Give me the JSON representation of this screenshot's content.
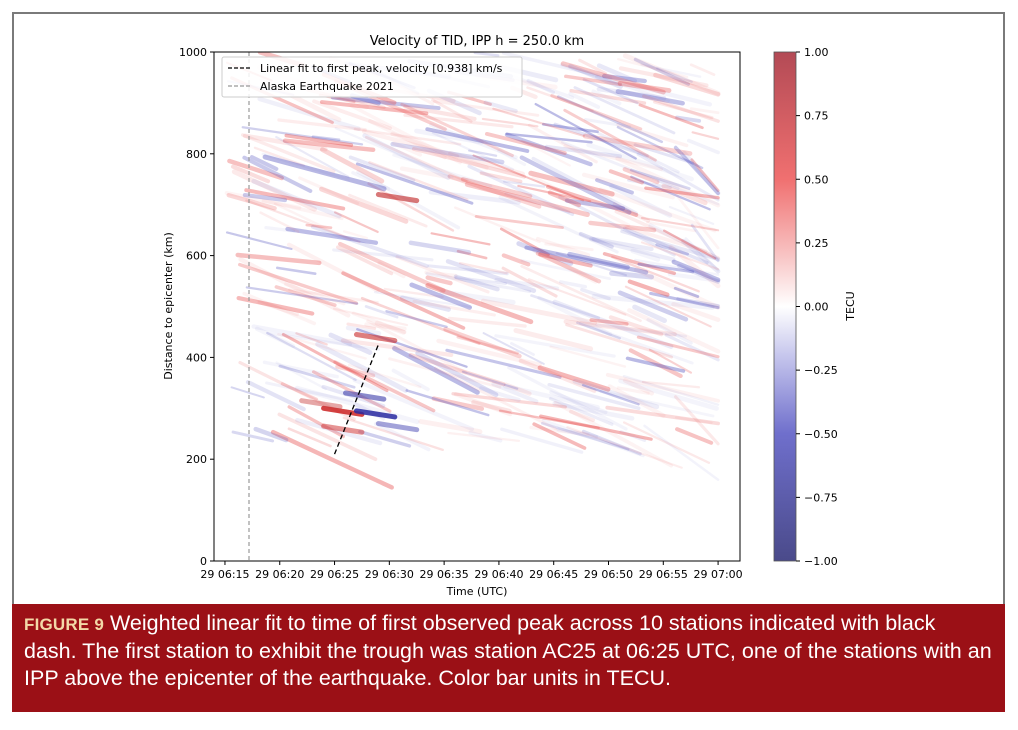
{
  "chart_data": {
    "type": "heatmap",
    "title": "Velocity of TID, IPP h = 250.0 km",
    "xlabel": "Time (UTC)",
    "ylabel": "Distance to epicenter (km)",
    "x_tick_labels": [
      "29 06:15",
      "29 06:20",
      "29 06:25",
      "29 06:30",
      "29 06:35",
      "29 06:40",
      "29 06:45",
      "29 06:50",
      "29 06:55",
      "29 07:00"
    ],
    "y_ticks": [
      0,
      200,
      400,
      600,
      800,
      1000
    ],
    "ylim": [
      0,
      1000
    ],
    "xlim": [
      "06:14",
      "07:02"
    ],
    "colorbar": {
      "label": "TECU",
      "ticks": [
        "1.00",
        "0.75",
        "0.50",
        "0.25",
        "0.00",
        "−0.25",
        "−0.50",
        "−0.75",
        "−1.00"
      ],
      "range": [
        -1,
        1
      ],
      "colormap": "seismic-like (blue negative, red positive)"
    },
    "legend": {
      "placement": "top-left",
      "entries": [
        {
          "label": "Linear fit to first peak, velocity [0.938] km/s",
          "style": "black dashed",
          "color": "#000000"
        },
        {
          "label": "Alaska Earthquake 2021",
          "style": "gray dashed",
          "color": "#999999"
        }
      ]
    },
    "earthquake_time": "06:15",
    "fit_line": {
      "x": [
        "06:25",
        "06:29"
      ],
      "y": [
        210,
        425
      ]
    },
    "data_range_y": [
      250,
      1000
    ],
    "data_range_x": [
      "06:15",
      "07:00"
    ]
  },
  "caption": {
    "label": "FIGURE 9",
    "text": "Weighted linear fit to time of first observed peak across 10 stations indicated with black dash. The first station to exhibit the trough was station AC25 at 06:25 UTC, one of the stations with an IPP above the epicenter of the earthquake. Color bar units in TECU."
  }
}
